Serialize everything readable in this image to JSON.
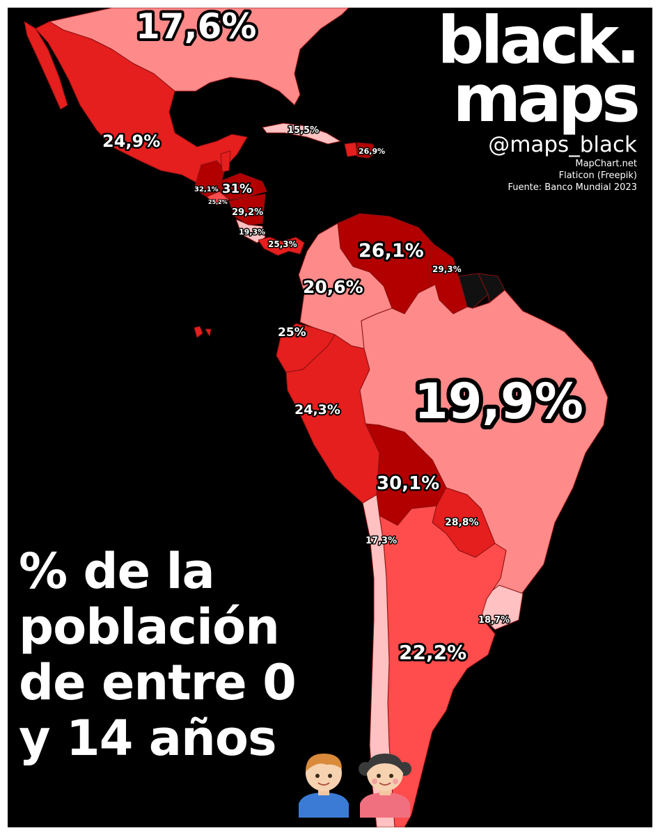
{
  "brand": {
    "line1": "black.",
    "line2": "maps",
    "handle": "@maps_black",
    "sources": [
      "MapChart.net",
      "Flaticon (Freepik)",
      "Fuente: Banco Mundial 2023"
    ]
  },
  "title_lines": [
    "% de la",
    "población",
    "de entre 0",
    "y 14 años"
  ],
  "icons": [
    "boy-emoji-icon",
    "girl-emoji-icon"
  ],
  "colors": {
    "background": "#000000",
    "lightest": "#ffc1c1",
    "light": "#ff8a8a",
    "medium": "#ff4c4c",
    "strong": "#e51e1e",
    "darkest": "#b20000",
    "no_data": "#111111"
  },
  "map_labels": [
    {
      "id": "usa",
      "text": "17,6%"
    },
    {
      "id": "mexico",
      "text": "24,9%"
    },
    {
      "id": "cuba",
      "text": "15,5%"
    },
    {
      "id": "dominican-republic",
      "text": "26,9%"
    },
    {
      "id": "guatemala",
      "text": "32,1%"
    },
    {
      "id": "honduras",
      "text": "31%"
    },
    {
      "id": "el-salvador",
      "text": "25,2%"
    },
    {
      "id": "nicaragua",
      "text": "29,2%"
    },
    {
      "id": "costa-rica",
      "text": "19,3%"
    },
    {
      "id": "panama",
      "text": "25,3%"
    },
    {
      "id": "venezuela",
      "text": "26,1%"
    },
    {
      "id": "guyana",
      "text": "29,3%"
    },
    {
      "id": "colombia",
      "text": "20,6%"
    },
    {
      "id": "ecuador",
      "text": "25%"
    },
    {
      "id": "peru",
      "text": "24,3%"
    },
    {
      "id": "brazil",
      "text": "19,9%"
    },
    {
      "id": "bolivia",
      "text": "30,1%"
    },
    {
      "id": "paraguay",
      "text": "28,8%"
    },
    {
      "id": "chile",
      "text": "17,3%"
    },
    {
      "id": "uruguay",
      "text": "18,7%"
    },
    {
      "id": "argentina",
      "text": "22,2%"
    }
  ]
}
